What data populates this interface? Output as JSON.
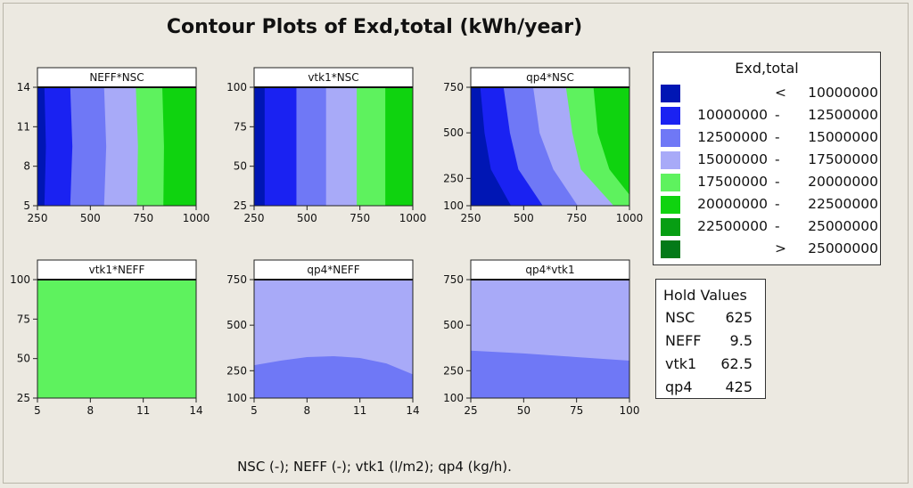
{
  "figure": {
    "title": "Contour Plots of Exd,total (kWh/year)",
    "x_note": "NSC (-); NEFF (-); vtk1 (l/m2); qp4 (kg/h)."
  },
  "legend": {
    "title": "Exd,total",
    "rows": [
      {
        "color": "#0016b4",
        "lo": "",
        "op": "<",
        "hi": "10000000"
      },
      {
        "color": "#1a22f2",
        "lo": "10000000",
        "op": "-",
        "hi": "12500000"
      },
      {
        "color": "#6f78f6",
        "lo": "12500000",
        "op": "-",
        "hi": "15000000"
      },
      {
        "color": "#a8aaf8",
        "lo": "15000000",
        "op": "-",
        "hi": "17500000"
      },
      {
        "color": "#5ef25e",
        "lo": "17500000",
        "op": "-",
        "hi": "20000000"
      },
      {
        "color": "#0fd30f",
        "lo": "20000000",
        "op": "-",
        "hi": "22500000"
      },
      {
        "color": "#079e13",
        "lo": "22500000",
        "op": "-",
        "hi": "25000000"
      },
      {
        "color": "#047a18",
        "lo": "",
        "op": ">",
        "hi": "25000000"
      }
    ]
  },
  "hold_values": {
    "title": "Hold Values",
    "items": [
      {
        "name": "NSC",
        "value": "625"
      },
      {
        "name": "NEFF",
        "value": "9.5"
      },
      {
        "name": "vtk1",
        "value": "62.5"
      },
      {
        "name": "qp4",
        "value": "425"
      }
    ]
  },
  "chart_data": [
    {
      "type": "contour",
      "title": "NEFF*NSC",
      "xlabel": "NSC",
      "ylabel": "NEFF",
      "xlim": [
        250,
        1000
      ],
      "ylim": [
        5,
        14
      ],
      "xticks": [
        250,
        500,
        750,
        1000
      ],
      "yticks": [
        5,
        8,
        11,
        14
      ],
      "regions": [
        {
          "level": 1,
          "boundary": [
            [
              283,
              5
            ],
            [
              290,
              9.5
            ],
            [
              283,
              14
            ]
          ]
        },
        {
          "level": 2,
          "boundary": [
            [
              405,
              5
            ],
            [
              415,
              9.5
            ],
            [
              405,
              14
            ]
          ]
        },
        {
          "level": 3,
          "boundary": [
            [
              565,
              5
            ],
            [
              575,
              9.5
            ],
            [
              565,
              14
            ]
          ]
        },
        {
          "level": 4,
          "boundary": [
            [
              720,
              5
            ],
            [
              725,
              9.5
            ],
            [
              715,
              14
            ]
          ]
        },
        {
          "level": 5,
          "boundary": [
            [
              845,
              5
            ],
            [
              848,
              9.5
            ],
            [
              840,
              14
            ]
          ]
        },
        {
          "level": 6,
          "boundary": [
            [
              1000,
              5
            ],
            [
              1000,
              14
            ]
          ]
        }
      ]
    },
    {
      "type": "contour",
      "title": "vtk1*NSC",
      "xlabel": "NSC",
      "ylabel": "vtk1",
      "xlim": [
        250,
        1000
      ],
      "ylim": [
        25,
        100
      ],
      "xticks": [
        250,
        500,
        750,
        1000
      ],
      "yticks": [
        25,
        50,
        75,
        100
      ],
      "regions": [
        {
          "level": 1,
          "boundary": [
            [
              300,
              25
            ],
            [
              300,
              100
            ]
          ]
        },
        {
          "level": 2,
          "boundary": [
            [
              450,
              25
            ],
            [
              450,
              100
            ]
          ]
        },
        {
          "level": 3,
          "boundary": [
            [
              590,
              25
            ],
            [
              590,
              100
            ]
          ]
        },
        {
          "level": 4,
          "boundary": [
            [
              735,
              25
            ],
            [
              735,
              100
            ]
          ]
        },
        {
          "level": 5,
          "boundary": [
            [
              870,
              25
            ],
            [
              870,
              100
            ]
          ]
        },
        {
          "level": 6,
          "boundary": [
            [
              1000,
              25
            ],
            [
              1000,
              100
            ]
          ]
        }
      ]
    },
    {
      "type": "contour",
      "title": "qp4*NSC",
      "xlabel": "NSC",
      "ylabel": "qp4",
      "xlim": [
        250,
        1000
      ],
      "ylim": [
        100,
        750
      ],
      "xticks": [
        250,
        500,
        750,
        1000
      ],
      "yticks": [
        100,
        250,
        500,
        750
      ],
      "regions": [
        {
          "level": 1,
          "boundary": [
            [
              440,
              100
            ],
            [
              345,
              300
            ],
            [
              315,
              500
            ],
            [
              295,
              750
            ]
          ]
        },
        {
          "level": 2,
          "boundary": [
            [
              590,
              100
            ],
            [
              475,
              300
            ],
            [
              435,
              500
            ],
            [
              405,
              750
            ]
          ]
        },
        {
          "level": 3,
          "boundary": [
            [
              755,
              100
            ],
            [
              640,
              300
            ],
            [
              575,
              500
            ],
            [
              545,
              750
            ]
          ]
        },
        {
          "level": 4,
          "boundary": [
            [
              925,
              100
            ],
            [
              770,
              300
            ],
            [
              730,
              500
            ],
            [
              700,
              750
            ]
          ]
        },
        {
          "level": 5,
          "boundary": [
            [
              1000,
              160
            ],
            [
              905,
              300
            ],
            [
              850,
              500
            ],
            [
              830,
              750
            ]
          ]
        },
        {
          "level": 6,
          "boundary": [
            [
              1000,
              750
            ]
          ]
        }
      ]
    },
    {
      "type": "contour",
      "title": "vtk1*NEFF",
      "xlabel": "NEFF",
      "ylabel": "vtk1",
      "xlim": [
        5,
        14
      ],
      "ylim": [
        25,
        100
      ],
      "xticks": [
        5,
        8,
        11,
        14
      ],
      "yticks": [
        25,
        50,
        75,
        100
      ],
      "regions": [
        {
          "level": 4,
          "boundary": [
            [
              5,
              25
            ],
            [
              14,
              25
            ],
            [
              14,
              100
            ],
            [
              5,
              100
            ]
          ]
        }
      ]
    },
    {
      "type": "contour",
      "title": "qp4*NEFF",
      "xlabel": "NEFF",
      "ylabel": "qp4",
      "xlim": [
        5,
        14
      ],
      "ylim": [
        100,
        750
      ],
      "xticks": [
        5,
        8,
        11,
        14
      ],
      "yticks": [
        100,
        250,
        500,
        750
      ],
      "regions": [
        {
          "level": 3,
          "boundary": [
            [
              5,
              280
            ],
            [
              6.5,
              305
            ],
            [
              8,
              325
            ],
            [
              9.5,
              330
            ],
            [
              11,
              320
            ],
            [
              12.5,
              290
            ],
            [
              14,
              230
            ]
          ]
        }
      ]
    },
    {
      "type": "contour",
      "title": "qp4*vtk1",
      "xlabel": "vtk1",
      "ylabel": "qp4",
      "xlim": [
        25,
        100
      ],
      "ylim": [
        100,
        750
      ],
      "xticks": [
        25,
        50,
        75,
        100
      ],
      "yticks": [
        100,
        250,
        500,
        750
      ],
      "regions": [
        {
          "level": 3,
          "boundary": [
            [
              25,
              360
            ],
            [
              50,
              345
            ],
            [
              75,
              325
            ],
            [
              100,
              305
            ]
          ]
        }
      ]
    }
  ]
}
